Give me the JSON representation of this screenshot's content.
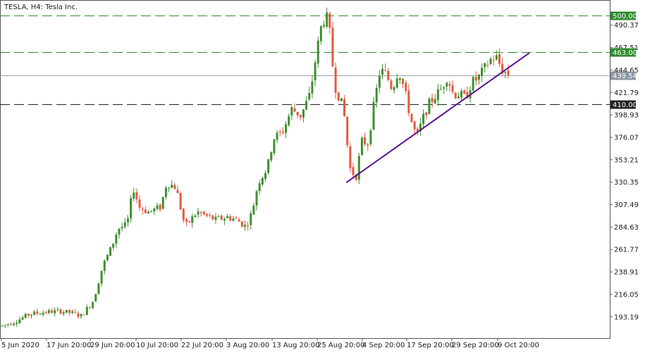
{
  "header": {
    "symbol_label": "TESLA, H4:  Tesla Inc."
  },
  "chart_data": {
    "type": "candlestick",
    "title": "TESLA, H4:  Tesla Inc.",
    "ylim": [
      171.5,
      516.0
    ],
    "y_ticks": [
      "490.37",
      "467.51",
      "444.65",
      "421.79",
      "398.93",
      "376.07",
      "353.21",
      "330.35",
      "307.49",
      "284.63",
      "261.77",
      "238.91",
      "216.05",
      "193.19"
    ],
    "x_ticks": [
      "5 Jun 2020",
      "17 Jun 20:00",
      "29 Jun 20:00",
      "10 Jul 20:00",
      "22 Jul 20:00",
      "3 Aug 20:00",
      "13 Aug 20:00",
      "25 Aug 20:00",
      "4 Sep 20:00",
      "17 Sep 20:00",
      "29 Sep 20:00",
      "9 Oct 20:00"
    ],
    "levels": [
      {
        "label": "500.00",
        "value": 500.0,
        "style": "dashed",
        "color": "#2e8b2e"
      },
      {
        "label": "463.00",
        "value": 463.0,
        "style": "dashed",
        "color": "#2e8b2e"
      },
      {
        "label": "410.00",
        "value": 410.0,
        "style": "dashed",
        "color": "#222222"
      },
      {
        "label": "439.54",
        "value": 439.54,
        "style": "solid",
        "color": "#9aa3b0",
        "current_price": true
      }
    ],
    "trendline": {
      "start": [
        0.568,
        330.0
      ],
      "end": [
        0.868,
        462.0
      ],
      "color": "#5a0f8f"
    },
    "price_anchors": [
      [
        0.0,
        184
      ],
      [
        0.02,
        188
      ],
      [
        0.045,
        196
      ],
      [
        0.07,
        198
      ],
      [
        0.095,
        199
      ],
      [
        0.115,
        197
      ],
      [
        0.13,
        194
      ],
      [
        0.15,
        210
      ],
      [
        0.165,
        245
      ],
      [
        0.18,
        265
      ],
      [
        0.19,
        283
      ],
      [
        0.205,
        287
      ],
      [
        0.215,
        325
      ],
      [
        0.225,
        305
      ],
      [
        0.24,
        300
      ],
      [
        0.26,
        305
      ],
      [
        0.27,
        330
      ],
      [
        0.285,
        325
      ],
      [
        0.3,
        285
      ],
      [
        0.32,
        300
      ],
      [
        0.35,
        292
      ],
      [
        0.37,
        295
      ],
      [
        0.385,
        292
      ],
      [
        0.4,
        285
      ],
      [
        0.41,
        300
      ],
      [
        0.42,
        330
      ],
      [
        0.435,
        345
      ],
      [
        0.445,
        375
      ],
      [
        0.46,
        382
      ],
      [
        0.475,
        405
      ],
      [
        0.49,
        398
      ],
      [
        0.505,
        420
      ],
      [
        0.515,
        460
      ],
      [
        0.525,
        495
      ],
      [
        0.535,
        498
      ],
      [
        0.545,
        430
      ],
      [
        0.56,
        405
      ],
      [
        0.57,
        345
      ],
      [
        0.58,
        335
      ],
      [
        0.59,
        372
      ],
      [
        0.6,
        370
      ],
      [
        0.61,
        410
      ],
      [
        0.62,
        445
      ],
      [
        0.63,
        440
      ],
      [
        0.64,
        425
      ],
      [
        0.65,
        445
      ],
      [
        0.66,
        425
      ],
      [
        0.67,
        395
      ],
      [
        0.68,
        376
      ],
      [
        0.69,
        395
      ],
      [
        0.7,
        410
      ],
      [
        0.71,
        418
      ],
      [
        0.72,
        425
      ],
      [
        0.73,
        438
      ],
      [
        0.74,
        420
      ],
      [
        0.75,
        420
      ],
      [
        0.76,
        416
      ],
      [
        0.77,
        432
      ],
      [
        0.78,
        436
      ],
      [
        0.79,
        445
      ],
      [
        0.8,
        455
      ],
      [
        0.81,
        458
      ],
      [
        0.82,
        445
      ],
      [
        0.83,
        440
      ]
    ],
    "candle_count": 174,
    "colors": {
      "up": "#3f8f2f",
      "down": "#e25a3f",
      "grid_green": "#2e8b2e"
    }
  }
}
